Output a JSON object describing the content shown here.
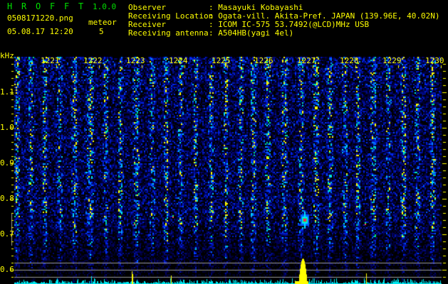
{
  "header": {
    "app_name_letters": [
      "H",
      "R",
      "O",
      "F",
      "F",
      "T"
    ],
    "version": "1.0.0",
    "filename": "0508171220.png",
    "datetime": "05.08.17 12:20",
    "meteor_label": "meteor",
    "meteor_count": "5",
    "info": [
      {
        "label": "Observer",
        "value": ": Masayuki Kobayashi"
      },
      {
        "label": "Receiving Location",
        "value": ": Ogata-vill. Akita-Pref. JAPAN (139.96E, 40.02N)"
      },
      {
        "label": "Receiver",
        "value": ": ICOM IC-575 53.7492(@LCD)MHz USB"
      },
      {
        "label": "Receiving antenna",
        "value": ": A504HB(yagi 4el)"
      }
    ]
  },
  "colors": {
    "text": "#ffff00",
    "logo": "#00e000",
    "spectrum_noise": "#00e8f0",
    "spectrum_peak": "#ffff00",
    "guide_lines": "#9a9a9a"
  },
  "chart_data": {
    "type": "heatmap",
    "title": "",
    "ylabel": "kHz",
    "y_ticks": [
      "1.1",
      "1.0",
      "0.9",
      "0.8",
      "0.7",
      "0.6"
    ],
    "ylim": [
      0.56,
      1.2
    ],
    "x_ticks": [
      "1221",
      "1222",
      "1223",
      "1224",
      "1225",
      "1226",
      "1227",
      "1228",
      "1229",
      "1230"
    ],
    "xlim": [
      "1220",
      "1230"
    ],
    "colormap": [
      "#000000",
      "#000a60",
      "#0020ff",
      "#00c0ff",
      "#00ff60",
      "#ffff00",
      "#ff2060"
    ],
    "events": [
      {
        "time": "1226.8",
        "freq_khz": 0.74,
        "intensity": "strong"
      },
      {
        "time": "1222.8",
        "freq_khz": 0.73,
        "intensity": "weak"
      },
      {
        "time": "1223.7",
        "freq_khz": 0.75,
        "intensity": "weak"
      },
      {
        "time": "1228.2",
        "freq_khz": 0.73,
        "intensity": "weak"
      }
    ],
    "peak_profile": [
      {
        "time": "1222.8",
        "level": 0.35
      },
      {
        "time": "1223.7",
        "level": 0.2
      },
      {
        "time": "1226.6",
        "level": 0.4
      },
      {
        "time": "1226.8",
        "level": 1.0
      },
      {
        "time": "1228.3",
        "level": 0.25
      }
    ]
  }
}
